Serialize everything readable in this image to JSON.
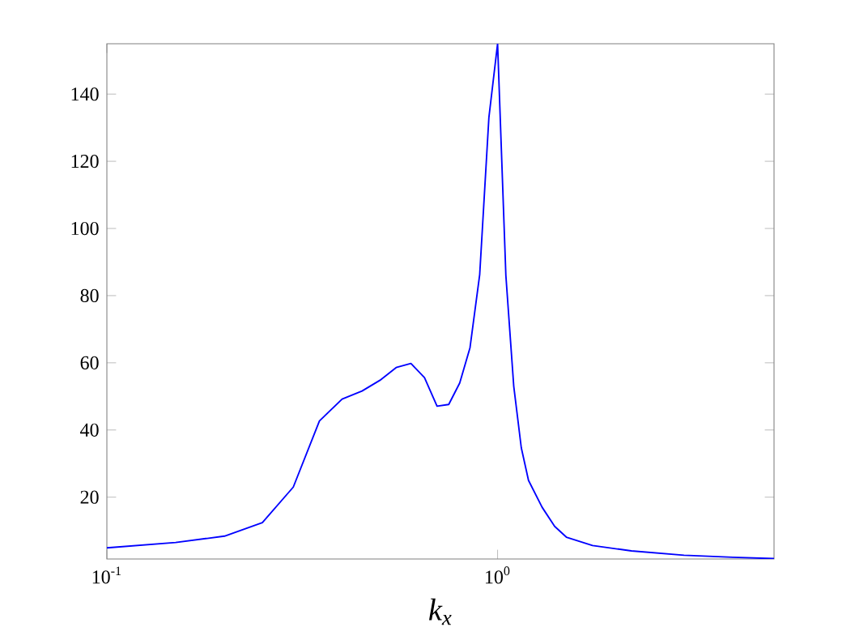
{
  "chart_data": {
    "type": "line",
    "xlabel": "k$_{x}$",
    "log": "x",
    "xlim": [
      0.1,
      5.1
    ],
    "ylim": [
      1.6,
      155
    ],
    "xticks": [
      {
        "value": 0.1,
        "label": "10$^{-1}$"
      },
      {
        "value": 1,
        "label": "10$^{0}$"
      }
    ],
    "yticks": [
      20,
      40,
      60,
      80,
      100,
      120,
      140
    ],
    "x": [
      0.1,
      0.15,
      0.2,
      0.25,
      0.3,
      0.35,
      0.4,
      0.45,
      0.5,
      0.55,
      0.6,
      0.65,
      0.7,
      0.75,
      0.8,
      0.85,
      0.9,
      0.95,
      1.0,
      1.05,
      1.1,
      1.15,
      1.2,
      1.3,
      1.4,
      1.5,
      1.75,
      2.2,
      3.0,
      4.0,
      5.1
    ],
    "series": [
      {
        "color": "#0000ff",
        "values": [
          4.9,
          6.5,
          8.4,
          12.4,
          23,
          42.7,
          49.2,
          51.6,
          54.8,
          58.6,
          59.8,
          55.6,
          47.1,
          47.6,
          54,
          64.5,
          86.3,
          133,
          155,
          86,
          53,
          34.7,
          25,
          17,
          11.3,
          8.1,
          5.6,
          4.0,
          2.7,
          2.1,
          1.7
        ]
      }
    ]
  }
}
